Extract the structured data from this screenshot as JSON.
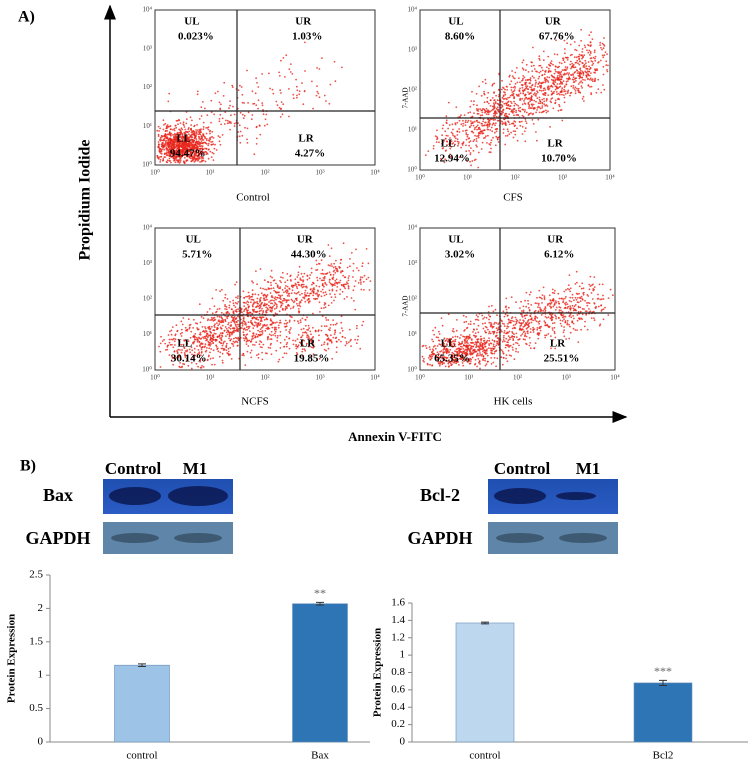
{
  "panel_a": {
    "label": "A)",
    "y_axis_label": "Propidium Iodide",
    "x_axis_label": "Annexin V-FITC",
    "tick_labels": [
      "10⁰",
      "10¹",
      "10²",
      "10³",
      "10⁴"
    ],
    "plots": [
      {
        "caption": "Control",
        "quadrants": [
          {
            "label": "UL",
            "value": "0.023%"
          },
          {
            "label": "UR",
            "value": "1.03%"
          },
          {
            "label": "LL",
            "value": "94.47%"
          },
          {
            "label": "LR",
            "value": "4.27%"
          }
        ]
      },
      {
        "caption": "CFS",
        "y_label": "7-AAD",
        "quadrants": [
          {
            "label": "UL",
            "value": "8.60%"
          },
          {
            "label": "UR",
            "value": "67.76%"
          },
          {
            "label": "LL",
            "value": "12.94%"
          },
          {
            "label": "LR",
            "value": "10.70%"
          }
        ]
      },
      {
        "caption": "NCFS",
        "quadrants": [
          {
            "label": "UL",
            "value": "5.71%"
          },
          {
            "label": "UR",
            "value": "44.30%"
          },
          {
            "label": "LL",
            "value": "30.14%"
          },
          {
            "label": "LR",
            "value": "19.85%"
          }
        ]
      },
      {
        "caption": "HK cells",
        "y_label": "7-AAD",
        "quadrants": [
          {
            "label": "UL",
            "value": "3.02%"
          },
          {
            "label": "UR",
            "value": "6.12%"
          },
          {
            "label": "LL",
            "value": "65.35%"
          },
          {
            "label": "LR",
            "value": "25.51%"
          }
        ]
      }
    ]
  },
  "panel_b": {
    "label": "B)",
    "blots": [
      {
        "lanes": [
          "Control",
          "M1"
        ],
        "protein": "Bax",
        "control_protein": "GAPDH"
      },
      {
        "lanes": [
          "Control",
          "M1"
        ],
        "protein": "Bcl-2",
        "control_protein": "GAPDH"
      }
    ]
  },
  "chart_data": [
    {
      "type": "bar",
      "y_label": "Protein Expression",
      "categories": [
        "control",
        "Bax"
      ],
      "values": [
        1.15,
        2.07
      ],
      "errors": [
        0.02,
        0.02
      ],
      "colors": [
        "#9dc3e6",
        "#2e75b6"
      ],
      "ylim": [
        0,
        2.5
      ],
      "yticks": [
        0,
        0.5,
        1,
        1.5,
        2,
        2.5
      ],
      "annotation": "**"
    },
    {
      "type": "bar",
      "y_label": "Protein Expression",
      "categories": [
        "control",
        "Bcl2"
      ],
      "values": [
        1.37,
        0.68
      ],
      "errors": [
        0.01,
        0.03
      ],
      "colors": [
        "#bdd7ee",
        "#2e75b6"
      ],
      "ylim": [
        0,
        1.6
      ],
      "yticks": [
        0,
        0.2,
        0.4,
        0.6,
        0.8,
        1,
        1.2,
        1.4,
        1.6
      ],
      "annotation": "***"
    }
  ]
}
